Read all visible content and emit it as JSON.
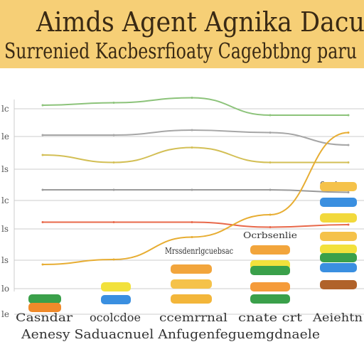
{
  "colors": {
    "banner": "#f6cf76",
    "background": "#ffffff",
    "grid": "#cccccc",
    "text": "#3a2a14"
  },
  "chart_data": {
    "type": "line",
    "title": "Aimds Agent Agnika Dacu",
    "subtitle": "Surrenied Kacbesrfioaty Cagebtbng paru",
    "xlabel": "Aenesy Saduacnuel Anfugenfeguemgdnaele",
    "ylabel": "",
    "categories": [
      "Casndar",
      "ocolcdoe",
      "ccemrrnal",
      "cnate crt",
      "Aeiehtn"
    ],
    "y_tick_labels": [
      "lc",
      "le",
      "ls",
      "lc",
      "ls",
      "ls",
      "lo",
      "le"
    ],
    "grid": true,
    "legend": "none",
    "series": [
      {
        "color": "#8cc37a",
        "values": [
          7.2,
          7.3,
          7.5,
          6.8,
          6.8
        ]
      },
      {
        "color": "#a6a6a6",
        "values": [
          6.0,
          6.0,
          6.2,
          6.1,
          5.6
        ]
      },
      {
        "color": "#d3bf55",
        "values": [
          5.2,
          4.9,
          5.5,
          4.9,
          4.9
        ]
      },
      {
        "color": "#9a9a9a",
        "values": [
          3.8,
          3.8,
          3.8,
          3.8,
          3.7
        ]
      },
      {
        "color": "#e8684a",
        "values": [
          2.5,
          2.5,
          2.5,
          2.3,
          2.4
        ]
      },
      {
        "color": "#e7ad32",
        "values": [
          0.8,
          1.0,
          1.9,
          2.8,
          6.1
        ]
      }
    ],
    "annotation_labels": [
      "Mrssdenrlgcuebsac",
      "Ocrbsenlie",
      "Oosdnmas"
    ],
    "label_chips": [
      {
        "group": 0,
        "color": "#3aa04a"
      },
      {
        "group": 0,
        "color": "#f08a2a"
      },
      {
        "group": 1,
        "color": "#f2e13c"
      },
      {
        "group": 1,
        "color": "#3a8fe0"
      },
      {
        "group": 2,
        "color": "#f2a53c"
      },
      {
        "group": 2,
        "color": "#f5c24a"
      },
      {
        "group": 2,
        "color": "#f3b63a"
      },
      {
        "group": 3,
        "color": "#f2a53c"
      },
      {
        "group": 3,
        "color": "#f2e13c"
      },
      {
        "group": 3,
        "color": "#3aa04a"
      },
      {
        "group": 3,
        "color": "#f59b3a"
      },
      {
        "group": 3,
        "color": "#3aa04a"
      },
      {
        "group": 4,
        "color": "#f5c24a"
      },
      {
        "group": 4,
        "color": "#3a8fe0"
      },
      {
        "group": 4,
        "color": "#f2d93c"
      },
      {
        "group": 4,
        "color": "#f5c24a"
      },
      {
        "group": 4,
        "color": "#f2e13c"
      },
      {
        "group": 4,
        "color": "#3aa04a"
      },
      {
        "group": 4,
        "color": "#3a8fe0"
      },
      {
        "group": 4,
        "color": "#b0622a"
      }
    ]
  }
}
